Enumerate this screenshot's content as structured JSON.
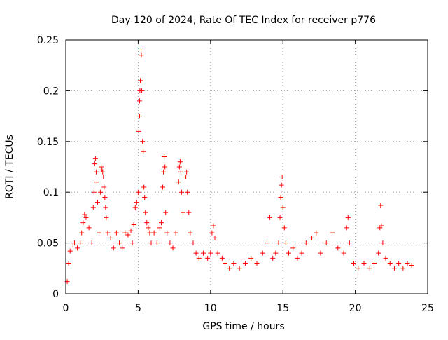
{
  "chart_data": {
    "type": "scatter",
    "title": "Day 120 of 2024, Rate Of TEC Index for receiver p776",
    "xlabel": "GPS time / hours",
    "ylabel": "ROTI / TECUs",
    "xlim": [
      0,
      25
    ],
    "ylim": [
      0,
      0.25
    ],
    "x_ticks": [
      0,
      5,
      10,
      15,
      20,
      25
    ],
    "x_tick_labels": [
      "0",
      "5",
      "10",
      "15",
      "20",
      "25"
    ],
    "y_ticks": [
      0,
      0.05,
      0.1,
      0.15,
      0.2,
      0.25
    ],
    "y_tick_labels": [
      "0",
      "0.05",
      "0.1",
      "0.15",
      "0.2",
      "0.25"
    ],
    "grid": true,
    "marker": "plus",
    "color": "#ff0000",
    "series": [
      {
        "name": "ROTI",
        "points": [
          [
            0.1,
            0.012
          ],
          [
            0.2,
            0.03
          ],
          [
            0.3,
            0.042
          ],
          [
            0.5,
            0.048
          ],
          [
            0.6,
            0.05
          ],
          [
            0.8,
            0.045
          ],
          [
            1.0,
            0.05
          ],
          [
            1.1,
            0.06
          ],
          [
            1.2,
            0.07
          ],
          [
            1.3,
            0.078
          ],
          [
            1.4,
            0.075
          ],
          [
            1.6,
            0.065
          ],
          [
            1.8,
            0.05
          ],
          [
            1.9,
            0.085
          ],
          [
            1.95,
            0.1
          ],
          [
            2.0,
            0.128
          ],
          [
            2.05,
            0.133
          ],
          [
            2.1,
            0.12
          ],
          [
            2.15,
            0.11
          ],
          [
            2.2,
            0.09
          ],
          [
            2.3,
            0.06
          ],
          [
            2.4,
            0.1
          ],
          [
            2.45,
            0.125
          ],
          [
            2.5,
            0.122
          ],
          [
            2.55,
            0.12
          ],
          [
            2.6,
            0.115
          ],
          [
            2.65,
            0.105
          ],
          [
            2.7,
            0.095
          ],
          [
            2.75,
            0.085
          ],
          [
            2.8,
            0.075
          ],
          [
            2.9,
            0.06
          ],
          [
            3.1,
            0.055
          ],
          [
            3.3,
            0.045
          ],
          [
            3.5,
            0.06
          ],
          [
            3.7,
            0.05
          ],
          [
            3.9,
            0.045
          ],
          [
            4.1,
            0.06
          ],
          [
            4.3,
            0.058
          ],
          [
            4.5,
            0.062
          ],
          [
            4.6,
            0.05
          ],
          [
            4.7,
            0.068
          ],
          [
            4.8,
            0.085
          ],
          [
            4.9,
            0.09
          ],
          [
            5.0,
            0.1
          ],
          [
            5.05,
            0.16
          ],
          [
            5.1,
            0.175
          ],
          [
            5.1,
            0.19
          ],
          [
            5.12,
            0.2
          ],
          [
            5.15,
            0.21
          ],
          [
            5.2,
            0.24
          ],
          [
            5.22,
            0.235
          ],
          [
            5.25,
            0.2
          ],
          [
            5.3,
            0.15
          ],
          [
            5.35,
            0.14
          ],
          [
            5.4,
            0.105
          ],
          [
            5.45,
            0.095
          ],
          [
            5.5,
            0.08
          ],
          [
            5.6,
            0.07
          ],
          [
            5.7,
            0.065
          ],
          [
            5.8,
            0.06
          ],
          [
            5.9,
            0.05
          ],
          [
            6.1,
            0.06
          ],
          [
            6.3,
            0.05
          ],
          [
            6.5,
            0.065
          ],
          [
            6.6,
            0.07
          ],
          [
            6.7,
            0.105
          ],
          [
            6.75,
            0.12
          ],
          [
            6.8,
            0.135
          ],
          [
            6.85,
            0.125
          ],
          [
            6.9,
            0.08
          ],
          [
            7.0,
            0.06
          ],
          [
            7.2,
            0.05
          ],
          [
            7.4,
            0.045
          ],
          [
            7.6,
            0.06
          ],
          [
            7.8,
            0.11
          ],
          [
            7.85,
            0.125
          ],
          [
            7.9,
            0.13
          ],
          [
            7.95,
            0.12
          ],
          [
            8.0,
            0.1
          ],
          [
            8.1,
            0.08
          ],
          [
            8.3,
            0.115
          ],
          [
            8.35,
            0.12
          ],
          [
            8.4,
            0.1
          ],
          [
            8.5,
            0.08
          ],
          [
            8.6,
            0.06
          ],
          [
            8.8,
            0.05
          ],
          [
            9.0,
            0.04
          ],
          [
            9.2,
            0.035
          ],
          [
            9.5,
            0.04
          ],
          [
            9.8,
            0.035
          ],
          [
            10.0,
            0.04
          ],
          [
            10.1,
            0.06
          ],
          [
            10.2,
            0.067
          ],
          [
            10.3,
            0.055
          ],
          [
            10.5,
            0.04
          ],
          [
            10.8,
            0.035
          ],
          [
            11.0,
            0.03
          ],
          [
            11.3,
            0.025
          ],
          [
            11.6,
            0.03
          ],
          [
            12.0,
            0.025
          ],
          [
            12.4,
            0.03
          ],
          [
            12.8,
            0.035
          ],
          [
            13.2,
            0.03
          ],
          [
            13.6,
            0.04
          ],
          [
            13.9,
            0.05
          ],
          [
            14.1,
            0.075
          ],
          [
            14.3,
            0.035
          ],
          [
            14.5,
            0.04
          ],
          [
            14.7,
            0.05
          ],
          [
            14.8,
            0.075
          ],
          [
            14.85,
            0.095
          ],
          [
            14.9,
            0.107
          ],
          [
            14.95,
            0.115
          ],
          [
            15.0,
            0.085
          ],
          [
            15.1,
            0.065
          ],
          [
            15.2,
            0.05
          ],
          [
            15.4,
            0.04
          ],
          [
            15.7,
            0.045
          ],
          [
            16.0,
            0.035
          ],
          [
            16.3,
            0.04
          ],
          [
            16.6,
            0.05
          ],
          [
            17.0,
            0.055
          ],
          [
            17.3,
            0.06
          ],
          [
            17.6,
            0.04
          ],
          [
            18.0,
            0.05
          ],
          [
            18.4,
            0.06
          ],
          [
            18.8,
            0.045
          ],
          [
            19.2,
            0.04
          ],
          [
            19.4,
            0.065
          ],
          [
            19.5,
            0.075
          ],
          [
            19.6,
            0.05
          ],
          [
            19.9,
            0.03
          ],
          [
            20.2,
            0.025
          ],
          [
            20.6,
            0.03
          ],
          [
            21.0,
            0.025
          ],
          [
            21.3,
            0.03
          ],
          [
            21.6,
            0.04
          ],
          [
            21.7,
            0.065
          ],
          [
            21.8,
            0.067
          ],
          [
            21.75,
            0.087
          ],
          [
            21.9,
            0.05
          ],
          [
            22.1,
            0.035
          ],
          [
            22.4,
            0.03
          ],
          [
            22.7,
            0.025
          ],
          [
            23.0,
            0.03
          ],
          [
            23.3,
            0.025
          ],
          [
            23.6,
            0.03
          ],
          [
            23.9,
            0.028
          ]
        ]
      }
    ]
  }
}
